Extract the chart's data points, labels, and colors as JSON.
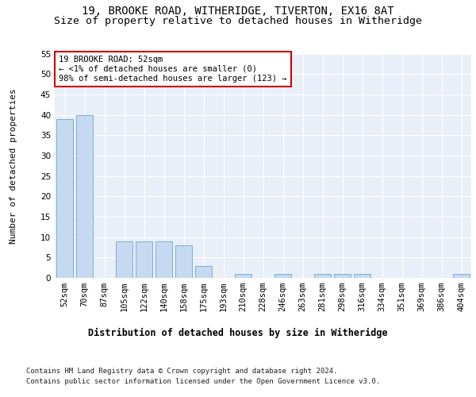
{
  "title1": "19, BROOKE ROAD, WITHERIDGE, TIVERTON, EX16 8AT",
  "title2": "Size of property relative to detached houses in Witheridge",
  "xlabel": "Distribution of detached houses by size in Witheridge",
  "ylabel": "Number of detached properties",
  "categories": [
    "52sqm",
    "70sqm",
    "87sqm",
    "105sqm",
    "122sqm",
    "140sqm",
    "158sqm",
    "175sqm",
    "193sqm",
    "210sqm",
    "228sqm",
    "246sqm",
    "263sqm",
    "281sqm",
    "298sqm",
    "316sqm",
    "334sqm",
    "351sqm",
    "369sqm",
    "386sqm",
    "404sqm"
  ],
  "values": [
    39,
    40,
    0,
    9,
    9,
    9,
    8,
    3,
    0,
    1,
    0,
    1,
    0,
    1,
    1,
    1,
    0,
    0,
    0,
    0,
    1
  ],
  "bar_color": "#c5d9f0",
  "bar_edge_color": "#7bafd4",
  "annotation_text": "19 BROOKE ROAD: 52sqm\n← <1% of detached houses are smaller (0)\n98% of semi-detached houses are larger (123) →",
  "annotation_box_color": "#ffffff",
  "annotation_box_edge": "#cc0000",
  "ylim": [
    0,
    55
  ],
  "yticks": [
    0,
    5,
    10,
    15,
    20,
    25,
    30,
    35,
    40,
    45,
    50,
    55
  ],
  "footer1": "Contains HM Land Registry data © Crown copyright and database right 2024.",
  "footer2": "Contains public sector information licensed under the Open Government Licence v3.0.",
  "plot_bg_color": "#e8eff8",
  "title_fontsize": 10,
  "subtitle_fontsize": 9.5,
  "tick_fontsize": 7.5,
  "ylabel_fontsize": 8,
  "xlabel_fontsize": 8.5,
  "annotation_fontsize": 7.5,
  "footer_fontsize": 6.5
}
